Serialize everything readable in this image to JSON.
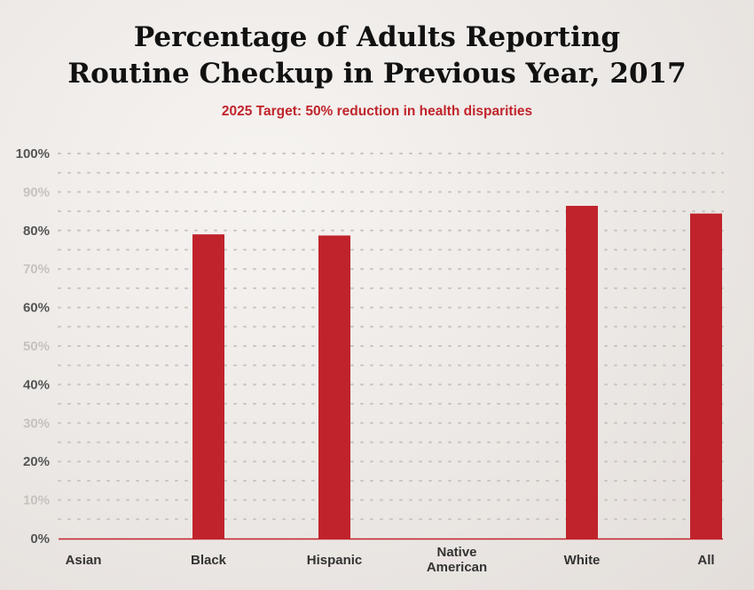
{
  "chart_data": {
    "type": "bar",
    "title_lines": [
      "Percentage of Adults Reporting",
      "Routine Checkup in Previous Year, 2017"
    ],
    "subtitle": "2025 Target: 50% reduction in health disparities",
    "categories": [
      [
        "Asian"
      ],
      [
        "Black"
      ],
      [
        "Hispanic"
      ],
      [
        "Native",
        "American"
      ],
      [
        "White"
      ],
      [
        "All"
      ]
    ],
    "values": [
      null,
      79,
      78.7,
      null,
      86.4,
      84.4
    ],
    "ylim": [
      0,
      100
    ],
    "yticks": [
      {
        "value": 0,
        "label": "0%"
      },
      {
        "value": 10,
        "label": "10%"
      },
      {
        "value": 20,
        "label": "20%"
      },
      {
        "value": 30,
        "label": "30%"
      },
      {
        "value": 40,
        "label": "40%"
      },
      {
        "value": 50,
        "label": "50%"
      },
      {
        "value": 60,
        "label": "60%"
      },
      {
        "value": 70,
        "label": "70%"
      },
      {
        "value": 80,
        "label": "80%"
      },
      {
        "value": 90,
        "label": "90%"
      },
      {
        "value": 100,
        "label": "100%"
      }
    ],
    "grid": true,
    "colors": {
      "bar": "#c0232b",
      "subtitle": "#c0252b",
      "major_tick": "#555555",
      "minor_tick": "#c7c2be",
      "grid_dot": "#c9c4c0",
      "baseline": "#c0232b"
    }
  }
}
